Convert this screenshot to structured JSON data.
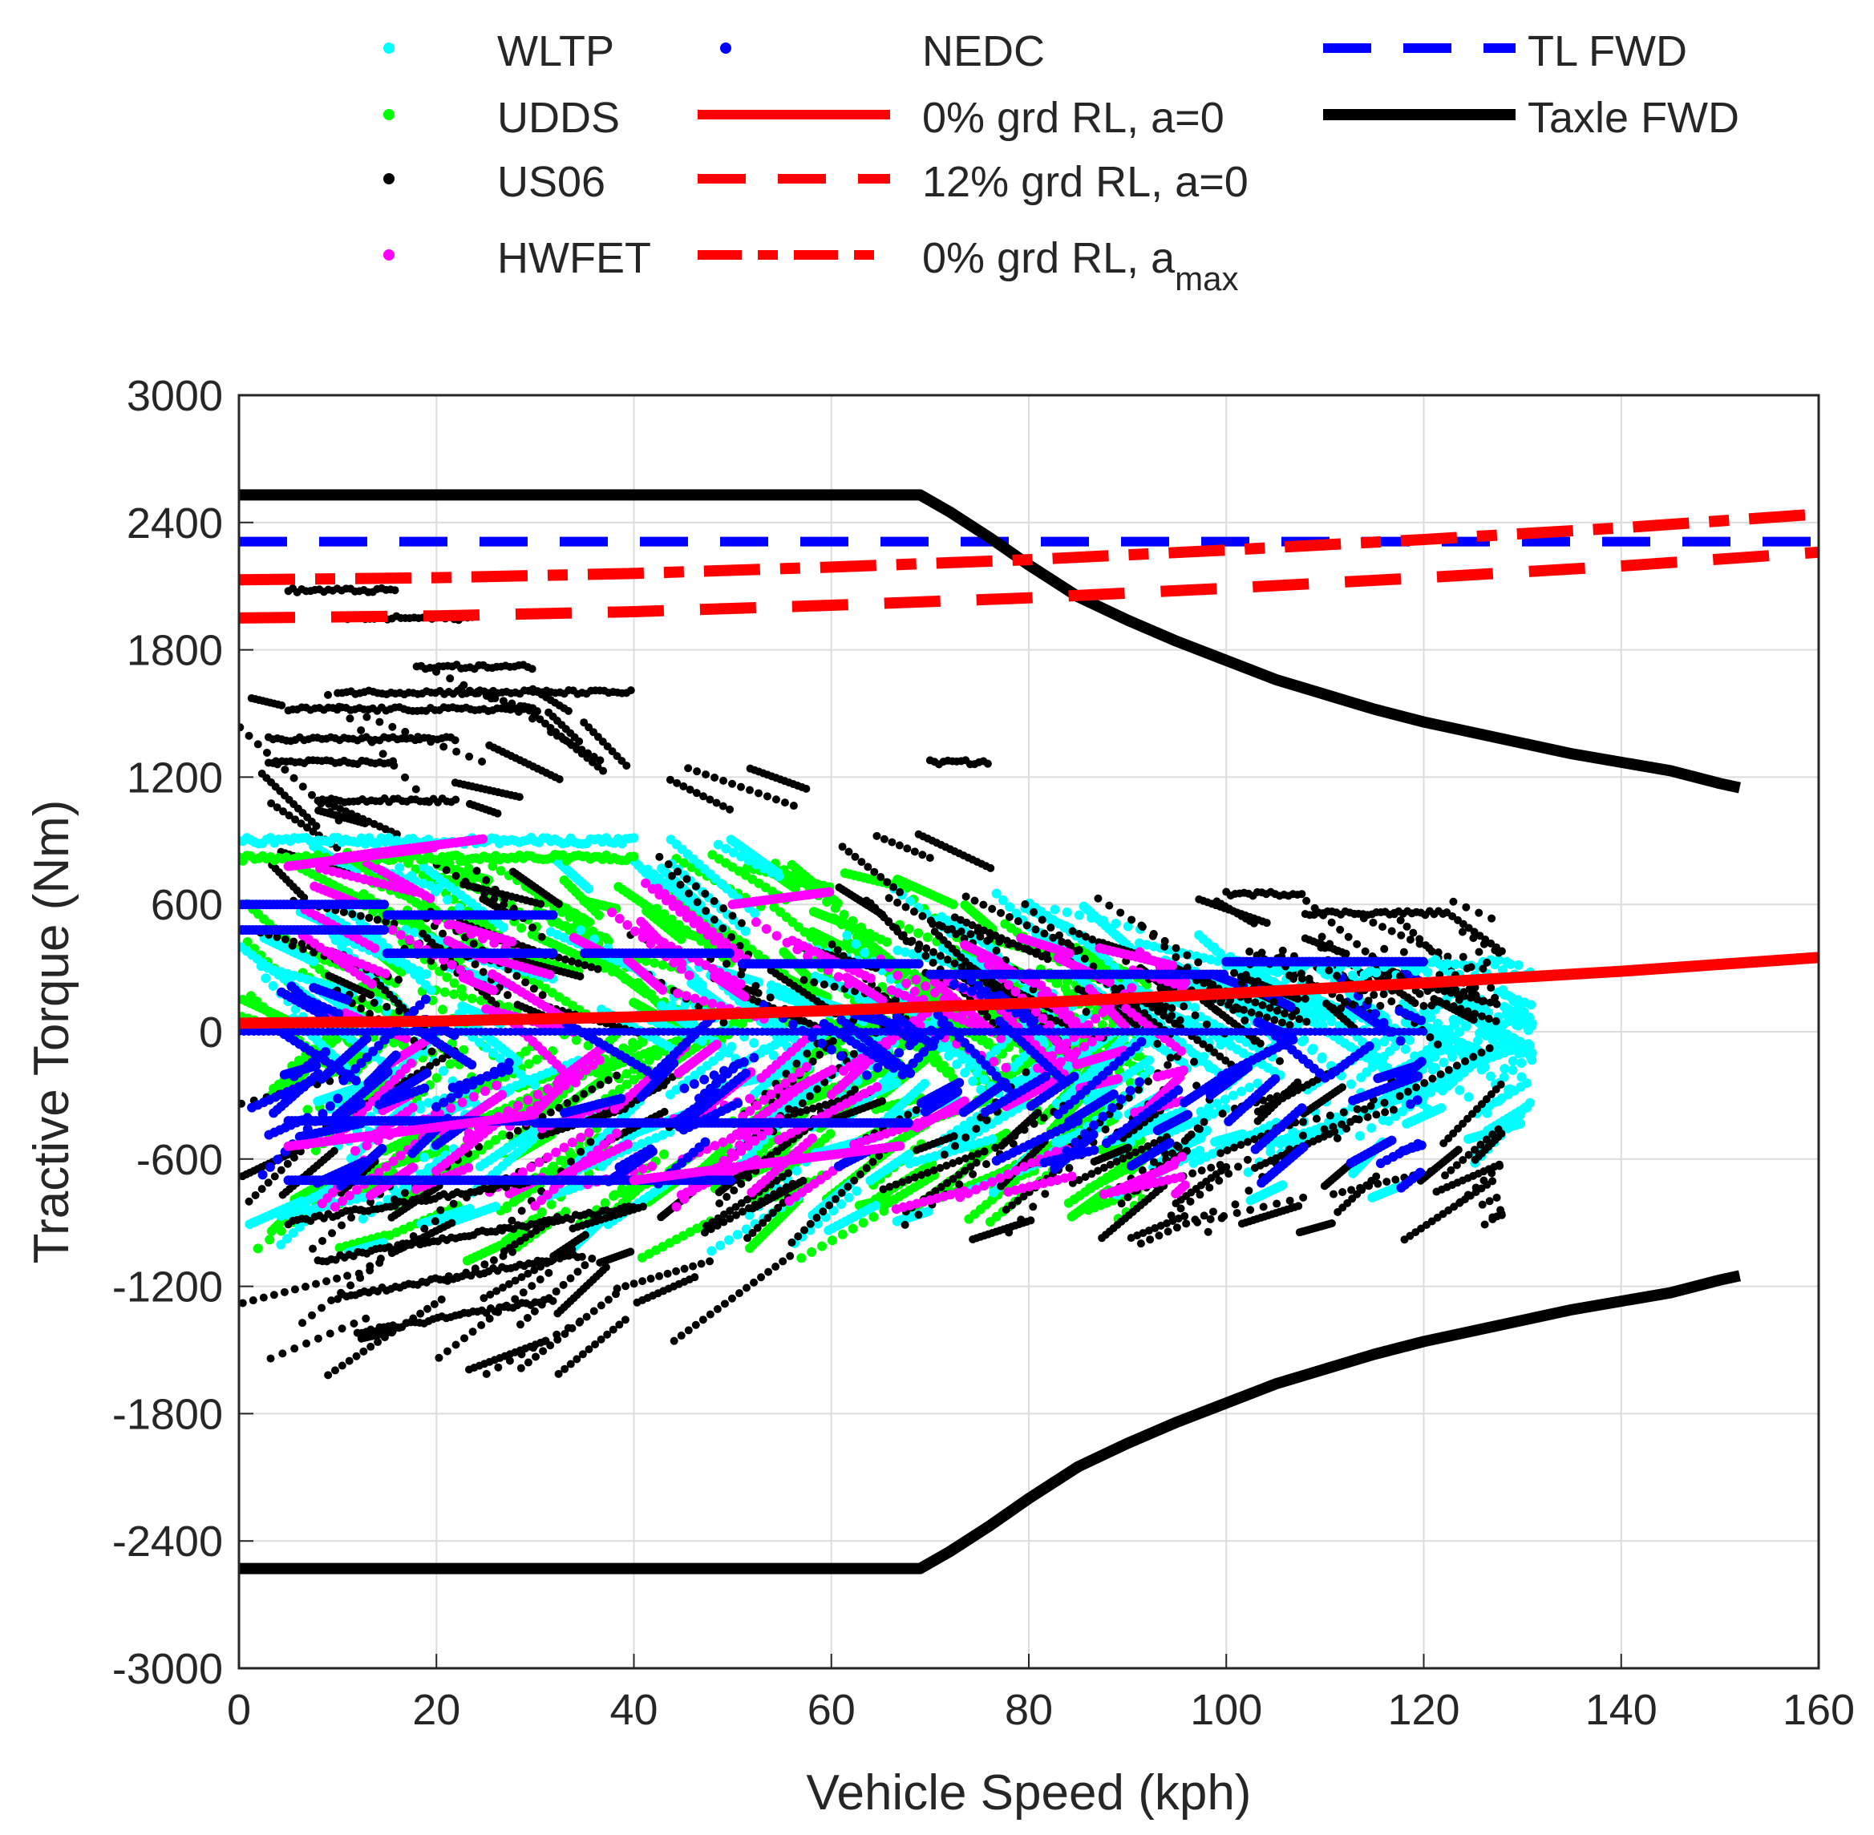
{
  "chart_data": {
    "type": "scatter",
    "title": "",
    "xlabel": "Vehicle Speed (kph)",
    "ylabel": "Tractive Torque (Nm)",
    "xlim": [
      0,
      160
    ],
    "ylim": [
      -3000,
      3000
    ],
    "xticks": [
      0,
      20,
      40,
      60,
      80,
      100,
      120,
      140,
      160
    ],
    "yticks": [
      -3000,
      -2400,
      -1800,
      -1200,
      -600,
      0,
      600,
      1200,
      1800,
      2400,
      3000
    ],
    "grid": true,
    "legend_position": "top (above plot, 3 columns)",
    "legend": [
      {
        "label": "WLTP",
        "kind": "marker",
        "color": "#00ffff"
      },
      {
        "label": "UDDS",
        "kind": "marker",
        "color": "#00ff00"
      },
      {
        "label": "US06",
        "kind": "marker",
        "color": "#000000"
      },
      {
        "label": "HWFET",
        "kind": "marker",
        "color": "#ff00ff"
      },
      {
        "label": "NEDC",
        "kind": "marker",
        "color": "#0000ff"
      },
      {
        "label": "0% grd RL, a=0",
        "kind": "solid",
        "color": "#ff0000"
      },
      {
        "label": "12% grd RL, a=0",
        "kind": "dashed",
        "color": "#ff0000"
      },
      {
        "label": "0% grd RL, a",
        "sub": "max",
        "kind": "dashdot",
        "color": "#ff0000"
      },
      {
        "label": "TL FWD",
        "kind": "dashed",
        "color": "#0000ff"
      },
      {
        "label": "Taxle FWD",
        "kind": "solid",
        "color": "#000000"
      }
    ],
    "series": [
      {
        "name": "TL FWD",
        "style": "dashed",
        "color": "#0000ff",
        "x": [
          0,
          160
        ],
        "y": [
          2310,
          2310
        ]
      },
      {
        "name": "Taxle FWD (upper)",
        "style": "solid",
        "color": "#000000",
        "x": [
          0,
          69,
          72,
          76,
          80,
          85,
          90,
          95,
          100,
          105,
          110,
          115,
          120,
          125,
          130,
          135,
          140,
          145,
          150,
          152
        ],
        "y": [
          2530,
          2530,
          2450,
          2330,
          2200,
          2050,
          1940,
          1840,
          1750,
          1660,
          1590,
          1520,
          1460,
          1410,
          1360,
          1310,
          1270,
          1230,
          1170,
          1150
        ]
      },
      {
        "name": "Taxle FWD (lower)",
        "style": "solid",
        "color": "#000000",
        "x": [
          0,
          69,
          72,
          76,
          80,
          85,
          90,
          95,
          100,
          105,
          110,
          115,
          120,
          125,
          130,
          135,
          140,
          145,
          150,
          152
        ],
        "y": [
          -2530,
          -2530,
          -2450,
          -2330,
          -2200,
          -2050,
          -1940,
          -1840,
          -1750,
          -1660,
          -1590,
          -1520,
          -1460,
          -1410,
          -1360,
          -1310,
          -1270,
          -1230,
          -1170,
          -1150
        ]
      },
      {
        "name": "0% grd RL, a=0",
        "style": "solid",
        "color": "#ff0000",
        "x": [
          0,
          20,
          40,
          60,
          80,
          100,
          120,
          140,
          160
        ],
        "y": [
          40,
          50,
          70,
          100,
          135,
          180,
          230,
          285,
          350
        ]
      },
      {
        "name": "12% grd RL, a=0",
        "style": "dashed",
        "color": "#ff0000",
        "x": [
          0,
          20,
          40,
          60,
          80,
          100,
          120,
          140,
          160
        ],
        "y": [
          1950,
          1960,
          1980,
          2010,
          2045,
          2090,
          2140,
          2195,
          2260
        ]
      },
      {
        "name": "0% grd RL, amax",
        "style": "dashdot",
        "color": "#ff0000",
        "x": [
          0,
          20,
          40,
          60,
          80,
          100,
          120,
          140,
          160
        ],
        "y": [
          2130,
          2140,
          2160,
          2190,
          2225,
          2270,
          2320,
          2375,
          2440
        ]
      }
    ],
    "scatter_groups": [
      {
        "name": "US06",
        "color": "#000000",
        "x_range": [
          0,
          128
        ],
        "upper_envelope_y": [
          2080,
          1950,
          1720,
          1600,
          1270,
          970,
          650,
          600,
          560
        ],
        "upper_envelope_x": [
          5,
          20,
          25,
          40,
          70,
          100,
          110,
          120,
          128
        ],
        "y_range": [
          -1800,
          2080
        ]
      },
      {
        "name": "WLTP",
        "color": "#00ffff",
        "x_range": [
          0,
          131
        ],
        "y_range": [
          -1100,
          950
        ]
      },
      {
        "name": "UDDS",
        "color": "#00ff00",
        "x_range": [
          0,
          92
        ],
        "y_range": [
          -1150,
          850
        ]
      },
      {
        "name": "HWFET",
        "color": "#ff00ff",
        "x_range": [
          5,
          96
        ],
        "y_range": [
          -900,
          820
        ]
      },
      {
        "name": "NEDC",
        "color": "#0000ff",
        "x_range": [
          0,
          120
        ],
        "y_range": [
          -700,
          600
        ]
      }
    ],
    "nedc_steps": [
      {
        "x": [
          0,
          15
        ],
        "y": 480
      },
      {
        "x": [
          0,
          15
        ],
        "y": 600
      },
      {
        "x": [
          15,
          32
        ],
        "y": 550
      },
      {
        "x": [
          15,
          32
        ],
        "y": 370
      },
      {
        "x": [
          35,
          50
        ],
        "y": 370
      },
      {
        "x": [
          51,
          69
        ],
        "y": 320
      },
      {
        "x": [
          70,
          100
        ],
        "y": 270
      },
      {
        "x": [
          100,
          120
        ],
        "y": 330
      },
      {
        "x": [
          5,
          30
        ],
        "y": -420
      },
      {
        "x": [
          5,
          50
        ],
        "y": -700
      },
      {
        "x": [
          30,
          68
        ],
        "y": -430
      }
    ],
    "hwfet_trace": [
      {
        "x": [
          5,
          20
        ],
        "y": 780
      },
      {
        "x": [
          10,
          25
        ],
        "y": 820
      },
      {
        "x": [
          50,
          60
        ],
        "y": 600
      },
      {
        "x": [
          5,
          30
        ],
        "y": -540
      },
      {
        "x": [
          40,
          67
        ],
        "y": -700
      }
    ]
  }
}
